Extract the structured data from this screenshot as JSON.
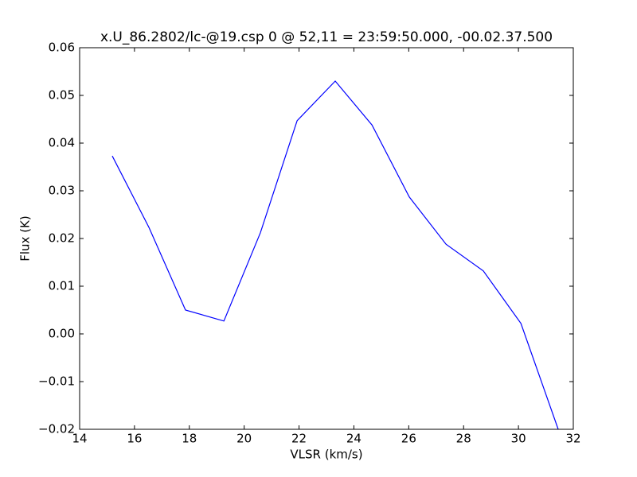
{
  "chart_data": {
    "type": "line",
    "title": "x.U_86.2802/lc-@19.csp 0 @ 52,11 = 23:59:50.000, -00.02.37.500",
    "xlabel": "VLSR (km/s)",
    "ylabel": "Flux (K)",
    "x": [
      15.19,
      16.53,
      17.86,
      19.26,
      20.59,
      21.93,
      23.32,
      24.66,
      26.02,
      27.36,
      28.72,
      30.09,
      31.45
    ],
    "series": [
      {
        "color": "#0000ff",
        "values": [
          0.0373,
          0.0223,
          0.005,
          0.0027,
          0.0212,
          0.0447,
          0.053,
          0.0438,
          0.0287,
          0.0188,
          0.0132,
          0.0022,
          -0.02
        ]
      }
    ],
    "xlim": [
      14,
      32
    ],
    "xticks": [
      14,
      16,
      18,
      20,
      22,
      24,
      26,
      28,
      30,
      32
    ],
    "ylim": [
      -0.02,
      0.06
    ],
    "yticks": [
      {
        "value": -0.02,
        "label": "−0.02"
      },
      {
        "value": -0.01,
        "label": "−0.01"
      },
      {
        "value": 0,
        "label": "0.00"
      },
      0.01,
      0.02,
      0.03,
      0.04,
      0.05,
      0.06
    ],
    "grid": false
  }
}
